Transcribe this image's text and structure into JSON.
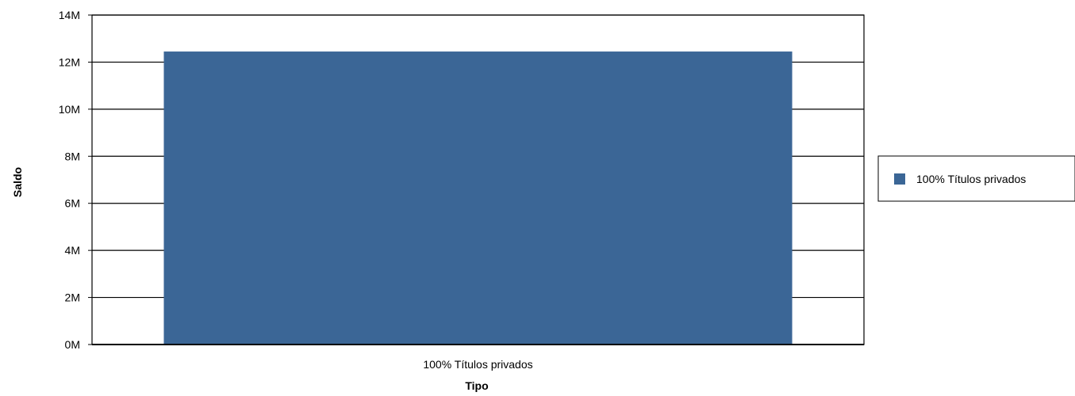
{
  "chart_data": {
    "type": "bar",
    "categories": [
      "100% Títulos privados"
    ],
    "series": [
      {
        "name": "100% Títulos privados",
        "values": [
          12450000
        ],
        "color": "#3b6696"
      }
    ],
    "xlabel": "Tipo",
    "ylabel": "Saldo",
    "ylim": [
      0,
      14000000
    ],
    "yticks": [
      {
        "value": 0,
        "label": "0M"
      },
      {
        "value": 2000000,
        "label": "2M"
      },
      {
        "value": 4000000,
        "label": "4M"
      },
      {
        "value": 6000000,
        "label": "6M"
      },
      {
        "value": 8000000,
        "label": "8M"
      },
      {
        "value": 10000000,
        "label": "10M"
      },
      {
        "value": 12000000,
        "label": "12M"
      },
      {
        "value": 14000000,
        "label": "14M"
      }
    ],
    "grid": true,
    "legend_position": "right"
  }
}
